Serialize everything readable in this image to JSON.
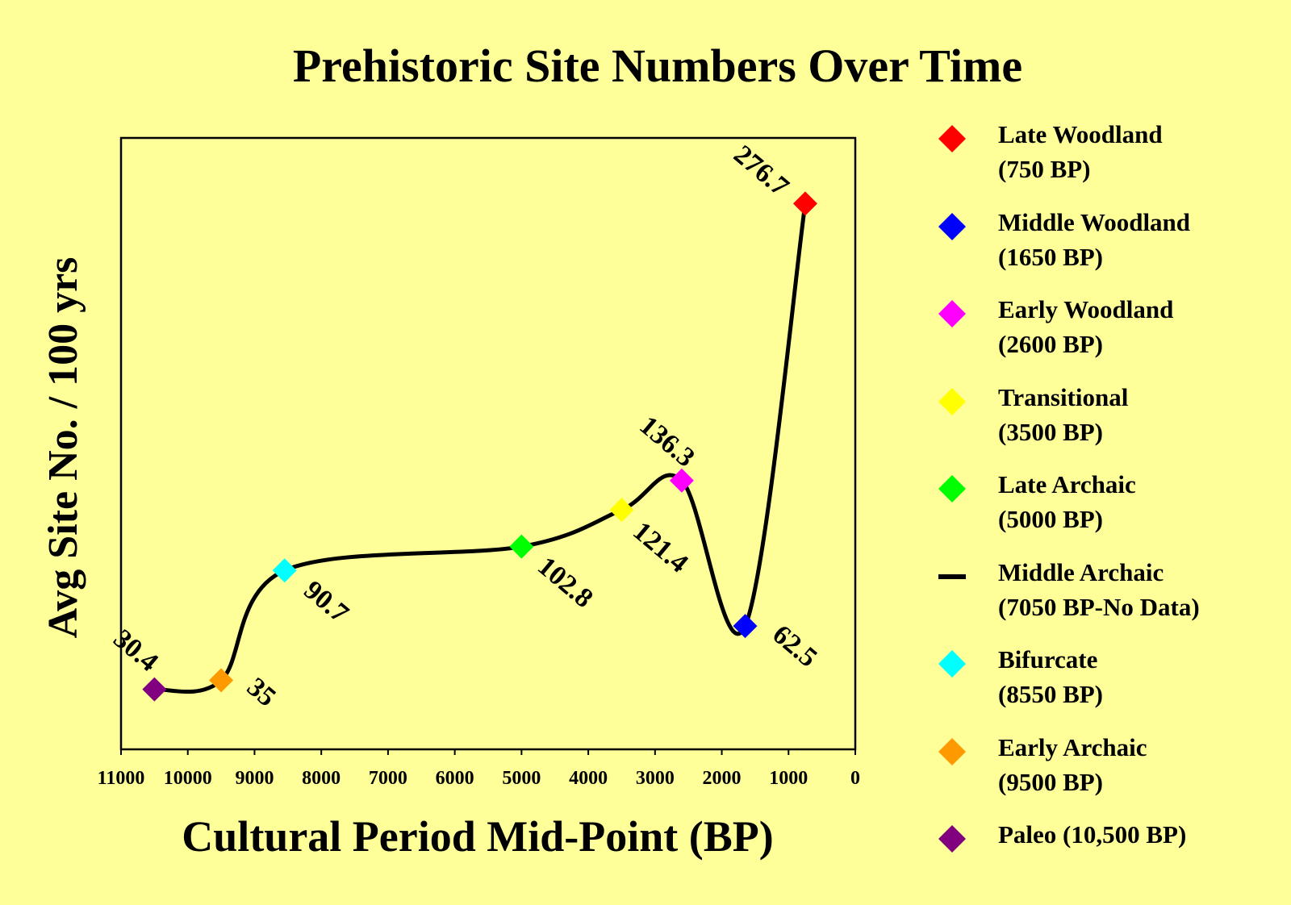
{
  "colors": {
    "background": "#FFFF99",
    "line": "#000000"
  },
  "chart_data": {
    "type": "line",
    "title": "Prehistoric Site Numbers Over Time",
    "xlabel": "Cultural Period Mid-Point (BP)",
    "ylabel": "Avg Site No. / 100 yrs",
    "xlim": [
      11000,
      0
    ],
    "x_reversed": true,
    "x_ticks": [
      "11000",
      "10000",
      "9000",
      "8000",
      "7000",
      "6000",
      "5000",
      "4000",
      "3000",
      "2000",
      "1000",
      "0"
    ],
    "ylim": [
      0,
      310
    ],
    "grid": false,
    "legend_position": "right",
    "series": [
      {
        "name": "Average site number per 100 years",
        "curve": "smooth",
        "points": [
          {
            "period": "Paleo",
            "x": 10500,
            "y": 30.4,
            "label": "30.4",
            "color": "#800080"
          },
          {
            "period": "Early Archaic",
            "x": 9500,
            "y": 35,
            "label": "35",
            "color": "#FF9900"
          },
          {
            "period": "Bifurcate",
            "x": 8550,
            "y": 90.7,
            "label": "90.7",
            "color": "#00FFFF"
          },
          {
            "period": "Late Archaic",
            "x": 5000,
            "y": 102.8,
            "label": "102.8",
            "color": "#00FF00"
          },
          {
            "period": "Transitional",
            "x": 3500,
            "y": 121.4,
            "label": "121.4",
            "color": "#FFFF00"
          },
          {
            "period": "Early Woodland",
            "x": 2600,
            "y": 136.3,
            "label": "136.3",
            "color": "#FF00FF"
          },
          {
            "period": "Middle Woodland",
            "x": 1650,
            "y": 62.5,
            "label": "62.5",
            "color": "#0000FF"
          },
          {
            "period": "Late Woodland",
            "x": 750,
            "y": 276.7,
            "label": "276.7",
            "color": "#FF0000"
          }
        ]
      }
    ],
    "legend": [
      {
        "line1": "Late Woodland",
        "line2": "(750 BP)",
        "marker": "diamond",
        "color": "#FF0000"
      },
      {
        "line1": "Middle Woodland",
        "line2": "(1650 BP)",
        "marker": "diamond",
        "color": "#0000FF"
      },
      {
        "line1": "Early Woodland",
        "line2": "(2600 BP)",
        "marker": "diamond",
        "color": "#FF00FF"
      },
      {
        "line1": "Transitional",
        "line2": "(3500 BP)",
        "marker": "diamond",
        "color": "#FFFF00"
      },
      {
        "line1": "Late Archaic",
        "line2": "(5000 BP)",
        "marker": "diamond",
        "color": "#00FF00"
      },
      {
        "line1": "Middle Archaic",
        "line2": "(7050 BP-No Data)",
        "marker": "line",
        "color": "#000000"
      },
      {
        "line1": "Bifurcate",
        "line2": "(8550 BP)",
        "marker": "diamond",
        "color": "#00FFFF"
      },
      {
        "line1": "Early Archaic",
        "line2": "(9500 BP)",
        "marker": "diamond",
        "color": "#FF9900"
      },
      {
        "line1": "Paleo (10,500 BP)",
        "line2": "",
        "marker": "diamond",
        "color": "#800080"
      }
    ]
  }
}
